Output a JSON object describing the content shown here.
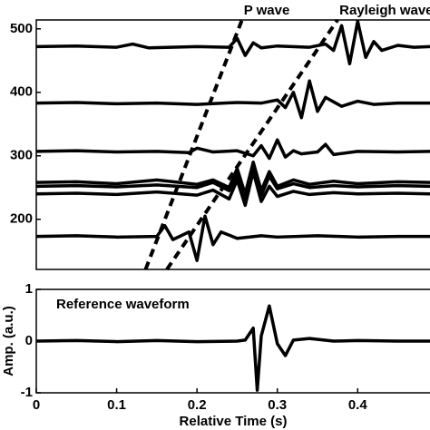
{
  "chart_data": [
    {
      "type": "line",
      "xlim": [
        0,
        0.49
      ],
      "ylim": [
        121,
        514
      ],
      "yticks": [
        200,
        300,
        400,
        500
      ],
      "lines": [
        {
          "name": "P wave",
          "x": [
            0.136,
            0.256
          ],
          "values": [
            121,
            514
          ]
        },
        {
          "name": "Rayleigh wave",
          "x": [
            0.1625,
            0.375
          ],
          "values": [
            121,
            514
          ]
        }
      ],
      "series": [
        {
          "color": "#000000",
          "x": [
            0,
            0.05,
            0.1,
            0.12,
            0.14,
            0.2,
            0.24,
            0.25,
            0.26,
            0.27,
            0.28,
            0.3,
            0.34,
            0.36,
            0.37,
            0.38,
            0.39,
            0.4,
            0.41,
            0.42,
            0.43,
            0.45,
            0.47,
            0.49
          ],
          "values": [
            472,
            473,
            471,
            476,
            470,
            472,
            471,
            485,
            458,
            478,
            470,
            473,
            471,
            476,
            466,
            505,
            445,
            512,
            455,
            480,
            466,
            474,
            471,
            472
          ]
        },
        {
          "color": "#000000",
          "x": [
            0,
            0.05,
            0.1,
            0.15,
            0.2,
            0.25,
            0.28,
            0.3,
            0.31,
            0.32,
            0.33,
            0.34,
            0.35,
            0.36,
            0.38,
            0.4,
            0.42,
            0.45,
            0.49
          ],
          "values": [
            383,
            384,
            382,
            383,
            381,
            384,
            383,
            388,
            376,
            400,
            360,
            418,
            370,
            392,
            378,
            386,
            381,
            383,
            383
          ]
        },
        {
          "color": "#000000",
          "x": [
            0,
            0.05,
            0.1,
            0.15,
            0.19,
            0.2,
            0.22,
            0.25,
            0.27,
            0.28,
            0.29,
            0.3,
            0.31,
            0.32,
            0.33,
            0.35,
            0.36,
            0.37,
            0.4,
            0.45,
            0.49
          ],
          "values": [
            307,
            308,
            306,
            307,
            305,
            312,
            306,
            308,
            300,
            316,
            296,
            325,
            298,
            308,
            303,
            306,
            318,
            302,
            307,
            306,
            307
          ]
        },
        {
          "color": "#000000",
          "x": [
            0,
            0.05,
            0.1,
            0.15,
            0.2,
            0.22,
            0.24,
            0.25,
            0.26,
            0.27,
            0.28,
            0.29,
            0.3,
            0.32,
            0.34,
            0.37,
            0.4,
            0.45,
            0.49
          ],
          "values": [
            258,
            259,
            256,
            262,
            255,
            262,
            250,
            280,
            240,
            290,
            245,
            275,
            252,
            262,
            255,
            260,
            256,
            259,
            258
          ]
        },
        {
          "color": "#000000",
          "x": [
            0,
            0.05,
            0.1,
            0.15,
            0.2,
            0.22,
            0.24,
            0.25,
            0.26,
            0.27,
            0.28,
            0.29,
            0.3,
            0.32,
            0.34,
            0.37,
            0.4,
            0.45,
            0.49
          ],
          "values": [
            252,
            253,
            251,
            254,
            250,
            258,
            245,
            272,
            230,
            285,
            238,
            268,
            248,
            256,
            250,
            253,
            251,
            253,
            252
          ]
        },
        {
          "color": "#000000",
          "x": [
            0,
            0.05,
            0.1,
            0.15,
            0.2,
            0.22,
            0.24,
            0.25,
            0.26,
            0.27,
            0.28,
            0.29,
            0.3,
            0.32,
            0.34,
            0.37,
            0.4,
            0.45,
            0.49
          ],
          "values": [
            240,
            241,
            239,
            243,
            238,
            246,
            232,
            262,
            222,
            275,
            228,
            252,
            236,
            244,
            239,
            242,
            240,
            241,
            240
          ]
        },
        {
          "color": "#000000",
          "x": [
            0,
            0.05,
            0.1,
            0.15,
            0.16,
            0.17,
            0.19,
            0.2,
            0.21,
            0.22,
            0.23,
            0.25,
            0.28,
            0.3,
            0.35,
            0.4,
            0.45,
            0.49
          ],
          "values": [
            173,
            174,
            172,
            173,
            190,
            168,
            180,
            135,
            205,
            160,
            180,
            170,
            174,
            172,
            174,
            172,
            173,
            173
          ]
        }
      ]
    },
    {
      "type": "line",
      "xlim": [
        0,
        0.49
      ],
      "ylim": [
        -1,
        1
      ],
      "yticks": [
        -1,
        0,
        1
      ],
      "xticks": [
        0,
        0.1,
        0.2,
        0.3,
        0.4
      ],
      "xlabel": "Relative Time (s)",
      "ylabel": "Amp. (a.u.)",
      "annotation": "Reference waveform",
      "series": [
        {
          "color": "#000000",
          "x": [
            0,
            0.05,
            0.1,
            0.15,
            0.2,
            0.25,
            0.26,
            0.27,
            0.275,
            0.28,
            0.29,
            0.3,
            0.31,
            0.32,
            0.34,
            0.37,
            0.4,
            0.45,
            0.49
          ],
          "values": [
            0,
            0.01,
            -0.01,
            0.01,
            -0.01,
            0,
            0.02,
            0.25,
            -0.95,
            0.1,
            0.68,
            -0.05,
            -0.28,
            0.02,
            0.05,
            0,
            0.01,
            0,
            0
          ]
        }
      ]
    }
  ]
}
